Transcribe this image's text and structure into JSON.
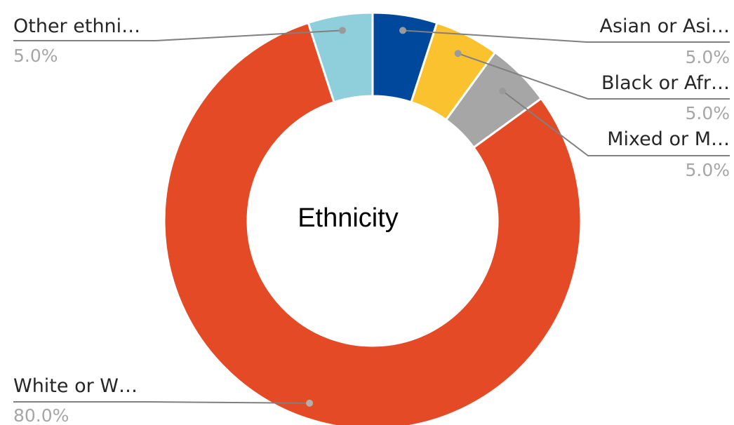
{
  "chart_data": {
    "type": "pie",
    "style": "donut",
    "title": "Ethnicity",
    "categories": [
      "Asian or Asi…",
      "Black or Afr…",
      "Mixed or M…",
      "White or W…",
      "Other ethni…"
    ],
    "values": [
      5.0,
      5.0,
      5.0,
      80.0,
      5.0
    ],
    "value_labels": [
      "5.0%",
      "5.0%",
      "5.0%",
      "80.0%",
      "5.0%"
    ],
    "colors": [
      "#00489c",
      "#fbc22f",
      "#a6a6a6",
      "#e44a25",
      "#8fcfdc"
    ],
    "leader_line_color": "#808080",
    "legend": "none",
    "start": "top, clockwise"
  }
}
